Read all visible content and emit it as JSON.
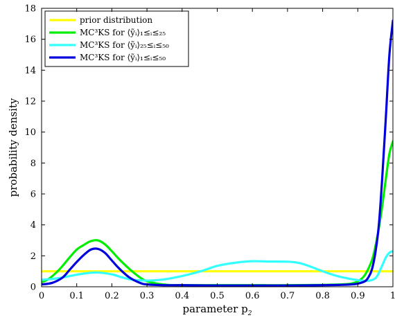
{
  "chart_data": {
    "type": "line",
    "xlabel": "parameter p",
    "xlabel_sub": "2",
    "ylabel": "probability density",
    "xlim": [
      0,
      1
    ],
    "ylim": [
      0,
      18
    ],
    "xticks": [
      0,
      0.1,
      0.2,
      0.3,
      0.4,
      0.5,
      0.6,
      0.7,
      0.8,
      0.9,
      1
    ],
    "xtick_labels": [
      "0",
      "0.1",
      "0.2",
      "0.3",
      "0.4",
      "0.5",
      "0.6",
      "0.7",
      "0.8",
      "0.9",
      "1"
    ],
    "yticks": [
      0,
      2,
      4,
      6,
      8,
      10,
      12,
      14,
      16,
      18
    ],
    "ytick_labels": [
      "0",
      "2",
      "4",
      "6",
      "8",
      "10",
      "12",
      "14",
      "16",
      "18"
    ],
    "grid": false,
    "legend_position": "top-left",
    "series": [
      {
        "name": "prior distribution",
        "color": "#ffff00",
        "x": [
          0,
          1
        ],
        "y": [
          1,
          1
        ]
      },
      {
        "name": "MC³KS for ⟨ỹᵢ⟩₁≤ᵢ≤₂₅",
        "color": "#00ee00",
        "x": [
          0,
          0.02,
          0.05,
          0.08,
          0.1,
          0.12,
          0.14,
          0.16,
          0.18,
          0.2,
          0.22,
          0.25,
          0.28,
          0.3,
          0.33,
          0.36,
          0.4,
          0.45,
          0.5,
          0.6,
          0.7,
          0.8,
          0.85,
          0.88,
          0.9,
          0.92,
          0.94,
          0.95,
          0.96,
          0.97,
          0.98,
          0.99,
          1.0
        ],
        "y": [
          0.3,
          0.5,
          1.1,
          1.9,
          2.4,
          2.7,
          2.95,
          3.0,
          2.75,
          2.3,
          1.8,
          1.15,
          0.6,
          0.35,
          0.2,
          0.12,
          0.1,
          0.1,
          0.1,
          0.1,
          0.1,
          0.12,
          0.15,
          0.2,
          0.35,
          0.75,
          1.7,
          2.6,
          3.8,
          5.3,
          7.0,
          8.6,
          9.4
        ]
      },
      {
        "name": "MC³KS for ⟨ỹᵢ⟩₂₅≤ᵢ≤₅₀",
        "color": "#33ffff",
        "x": [
          0,
          0.03,
          0.06,
          0.1,
          0.13,
          0.16,
          0.2,
          0.23,
          0.26,
          0.3,
          0.34,
          0.38,
          0.42,
          0.46,
          0.5,
          0.55,
          0.6,
          0.65,
          0.7,
          0.73,
          0.76,
          0.8,
          0.84,
          0.88,
          0.91,
          0.93,
          0.95,
          0.96,
          0.97,
          0.98,
          0.99,
          1.0
        ],
        "y": [
          0.45,
          0.5,
          0.6,
          0.78,
          0.88,
          0.92,
          0.8,
          0.6,
          0.45,
          0.4,
          0.45,
          0.6,
          0.8,
          1.05,
          1.35,
          1.55,
          1.65,
          1.63,
          1.62,
          1.55,
          1.35,
          1.0,
          0.7,
          0.5,
          0.4,
          0.38,
          0.55,
          0.9,
          1.4,
          1.9,
          2.2,
          2.3
        ]
      },
      {
        "name": "MC³KS for ⟨ỹᵢ⟩₁≤ᵢ≤₅₀",
        "color": "#0000dd",
        "x": [
          0,
          0.03,
          0.06,
          0.08,
          0.1,
          0.12,
          0.14,
          0.16,
          0.18,
          0.2,
          0.22,
          0.25,
          0.28,
          0.3,
          0.35,
          0.4,
          0.5,
          0.6,
          0.7,
          0.8,
          0.85,
          0.88,
          0.9,
          0.92,
          0.93,
          0.94,
          0.95,
          0.96,
          0.97,
          0.98,
          0.99,
          1.0
        ],
        "y": [
          0.15,
          0.25,
          0.6,
          1.1,
          1.6,
          2.05,
          2.4,
          2.45,
          2.2,
          1.7,
          1.2,
          0.6,
          0.25,
          0.15,
          0.1,
          0.1,
          0.08,
          0.08,
          0.08,
          0.1,
          0.12,
          0.15,
          0.2,
          0.35,
          0.6,
          1.1,
          2.2,
          4.0,
          7.2,
          11.0,
          15.0,
          17.2
        ]
      }
    ]
  }
}
